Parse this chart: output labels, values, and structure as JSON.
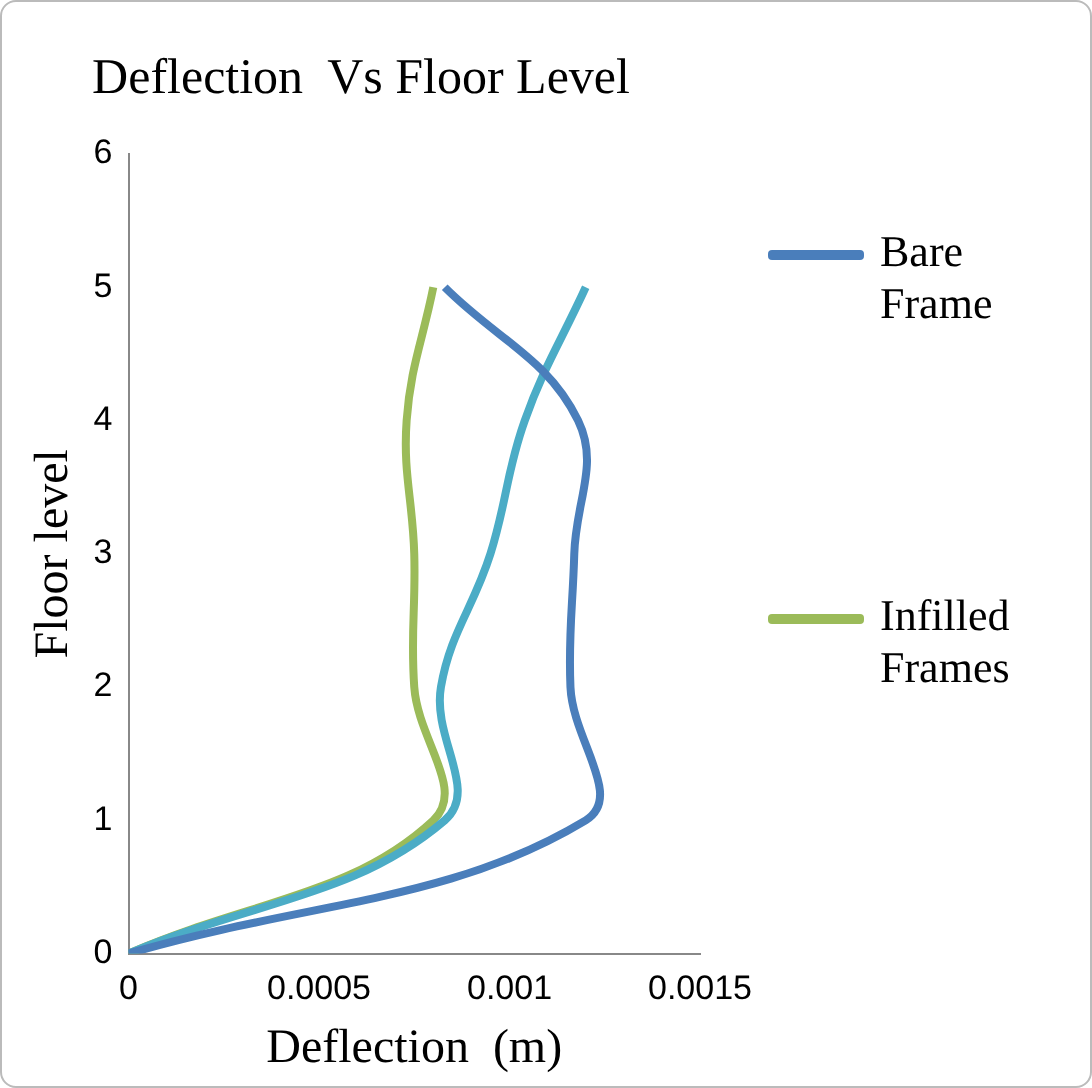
{
  "chart_data": {
    "type": "line",
    "title": "Deflection  Vs Floor Level",
    "xlabel": "Deflection  (m)",
    "ylabel": "Floor level",
    "xlim": [
      0,
      0.0015
    ],
    "xticks": [
      0,
      0.0005,
      0.001,
      0.0015
    ],
    "ylim": [
      0,
      6
    ],
    "yticks": [
      0,
      1,
      2,
      3,
      4,
      5,
      6
    ],
    "grid": false,
    "legend": "right",
    "marker": "none",
    "series": [
      {
        "name": "Bare Frame",
        "color": "#4a7ebb",
        "x": [
          0,
          0.0012,
          0.00116,
          0.00117,
          0.00118,
          0.00083
        ],
        "values": [
          0,
          1,
          2,
          3,
          4,
          5
        ]
      },
      {
        "color": "#4bacc6",
        "x": [
          0,
          0.00083,
          0.00082,
          0.00095,
          0.00104,
          0.0012
        ],
        "values": [
          0,
          1,
          2,
          3,
          4,
          5
        ]
      },
      {
        "name": "Infilled Frames",
        "color": "#9bbb59",
        "x": [
          0,
          0.0008,
          0.00075,
          0.00075,
          0.00073,
          0.0008
        ],
        "values": [
          0,
          1,
          2,
          3,
          4,
          5
        ]
      }
    ]
  }
}
